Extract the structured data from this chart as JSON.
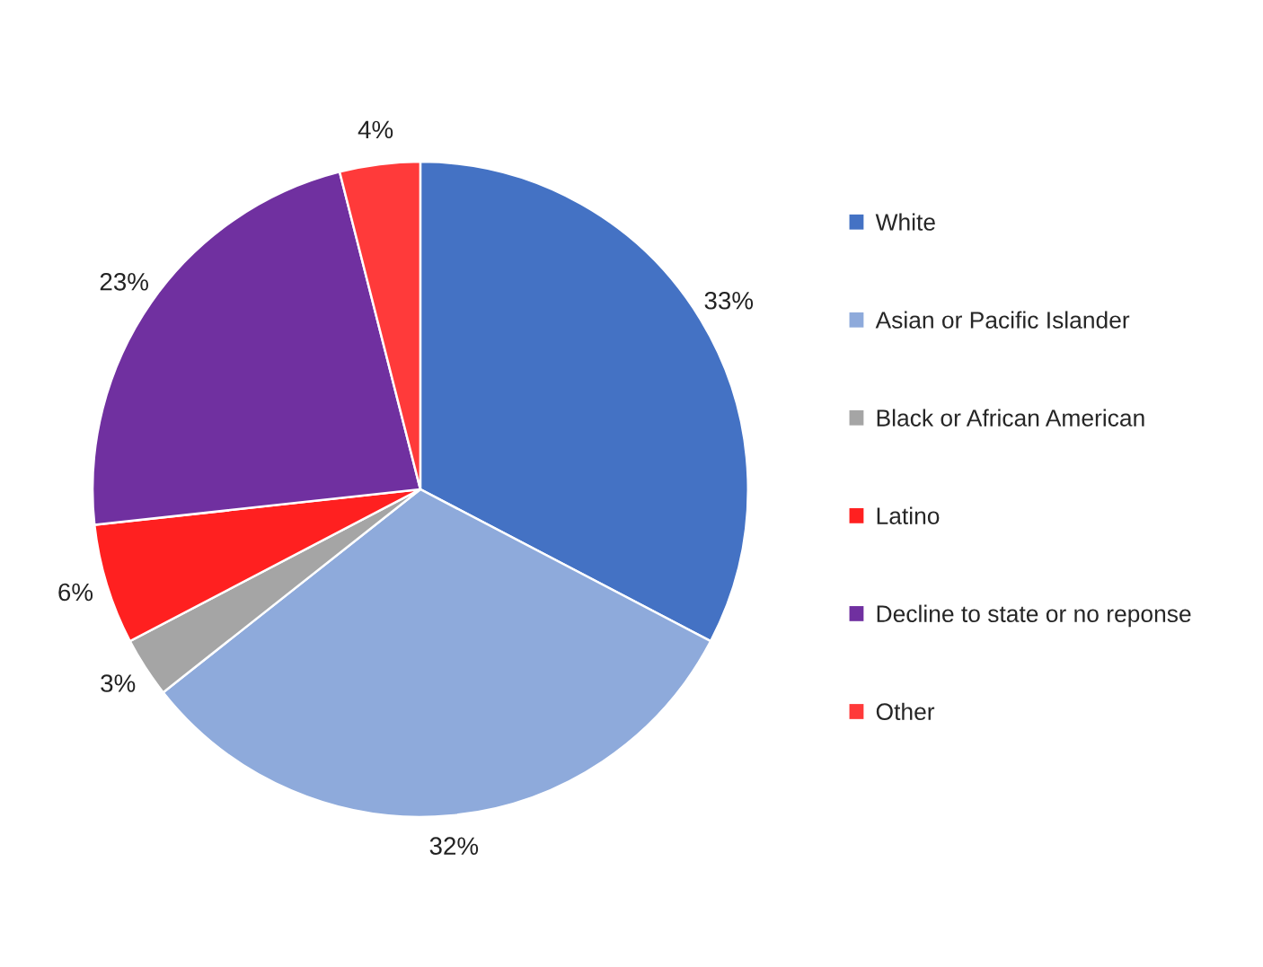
{
  "chart_data": {
    "type": "pie",
    "categories": [
      "White",
      "Asian or Pacific Islander",
      "Black or African American",
      "Latino",
      "Decline to state or no reponse",
      "Other"
    ],
    "values": [
      33,
      32,
      3,
      6,
      23,
      4
    ],
    "colors": [
      "#4472c4",
      "#8eaadb",
      "#a5a5a5",
      "#ff2020",
      "#7030a0",
      "#ff3a3a"
    ],
    "value_labels": [
      "33%",
      "32%",
      "3%",
      "6%",
      "23%",
      "4%"
    ],
    "legend": "right"
  }
}
